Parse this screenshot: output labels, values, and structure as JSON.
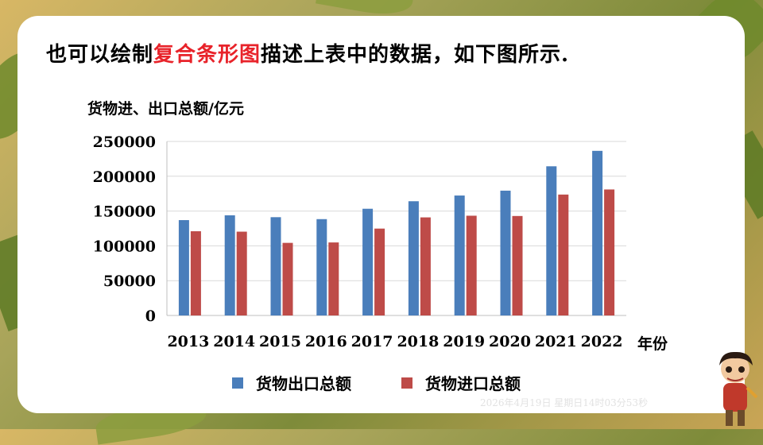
{
  "slide": {
    "heading_before": "也可以绘制",
    "heading_highlight": "复合条形图",
    "heading_after": "描述上表中的数据，如下图所示.",
    "watermark": "2026年4月19日 星期日14时03分53秒"
  },
  "colors": {
    "export": "#4a7ebb",
    "import": "#be4b48",
    "highlight": "#e8232a"
  },
  "chart_data": {
    "type": "bar",
    "ylabel": "货物进、出口总额/亿元",
    "xlabel": "年份",
    "categories": [
      "2013",
      "2014",
      "2015",
      "2016",
      "2017",
      "2018",
      "2019",
      "2020",
      "2021",
      "2022"
    ],
    "ylim": [
      0,
      250000
    ],
    "yticks": [
      0,
      50000,
      100000,
      150000,
      200000,
      250000
    ],
    "grid": true,
    "legend_position": "bottom",
    "series": [
      {
        "name": "货物出口总额",
        "values": [
          137000,
          143900,
          141200,
          138400,
          153300,
          164100,
          172300,
          179300,
          214300,
          236500
        ]
      },
      {
        "name": "货物进口总额",
        "values": [
          121000,
          120400,
          104300,
          104900,
          124800,
          140900,
          143300,
          142900,
          173700,
          181000
        ]
      }
    ]
  }
}
